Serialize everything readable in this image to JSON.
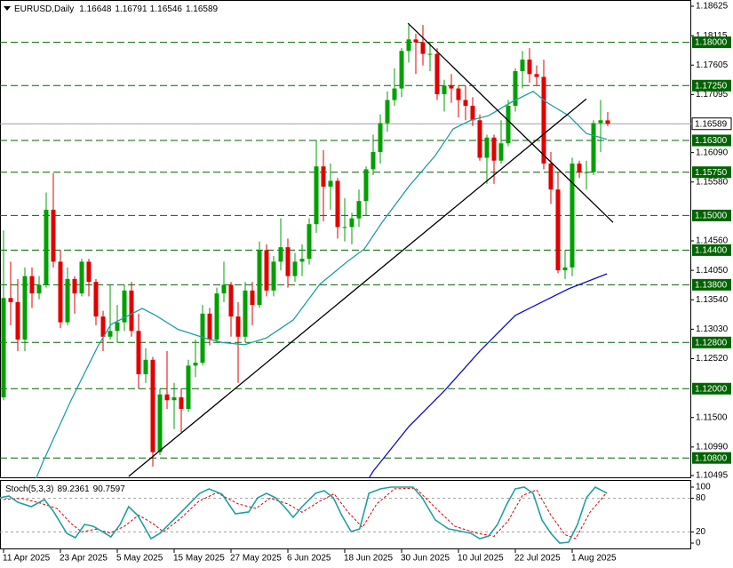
{
  "chart_data": {
    "type": "candlestick",
    "title": "EURUSD,Daily",
    "header_ohlc": [
      1.16648,
      1.16791,
      1.16546,
      1.16589
    ],
    "xlim": [
      -0.5,
      96.75
    ],
    "xticks": [
      {
        "value": 0,
        "label": "11 Apr 2025"
      },
      {
        "value": 8,
        "label": "23 Apr 2025"
      },
      {
        "value": 16,
        "label": "5 May 2025"
      },
      {
        "value": 24,
        "label": "15 May 2025"
      },
      {
        "value": 32,
        "label": "27 May 2025"
      },
      {
        "value": 40,
        "label": "6 Jun 2025"
      },
      {
        "value": 48,
        "label": "18 Jun 2025"
      },
      {
        "value": 56,
        "label": "30 Jun 2025"
      },
      {
        "value": 64,
        "label": "10 Jul 2025"
      },
      {
        "value": 72,
        "label": "22 Jul 2025"
      },
      {
        "value": 80,
        "label": "1 Aug 2025"
      }
    ],
    "ylim": [
      1.10495,
      1.18625
    ],
    "yticks": [
      1.18625,
      1.18115,
      1.17605,
      1.17095,
      {
        "value": 1.1609,
        "label": "1.16090"
      },
      {
        "value": 1.1558,
        "label": "1.15580"
      },
      {
        "value": 1.1456,
        "label": "1.14560"
      },
      {
        "value": 1.1405,
        "label": "1.14050"
      },
      {
        "value": 1.1354,
        "label": "1.13540"
      },
      {
        "value": 1.1303,
        "label": "1.13030"
      },
      {
        "value": 1.1252,
        "label": "1.12520"
      },
      {
        "value": 1.115,
        "label": "1.11500"
      },
      {
        "value": 1.1099,
        "label": "1.10990"
      },
      1.10495
    ],
    "up_color": "#00a000",
    "down_color": "#e00000",
    "open": [
      1.1185,
      1.1357,
      1.135,
      1.1285,
      1.1395,
      1.1365,
      1.138,
      1.151,
      1.142,
      1.1315,
      1.139,
      1.1365,
      1.142,
      1.1385,
      1.1325,
      1.129,
      1.13,
      1.1315,
      1.137,
      1.13,
      1.1225,
      1.125,
      1.109,
      1.119,
      1.118,
      1.1185,
      1.1165,
      1.124,
      1.1245,
      1.133,
      1.1285,
      1.1365,
      1.138,
      1.1325,
      1.129,
      1.137,
      1.1345,
      1.144,
      1.137,
      1.142,
      1.1445,
      1.1395,
      1.142,
      1.1425,
      1.1485,
      1.1585,
      1.155,
      1.156,
      1.148,
      1.148,
      1.1495,
      1.1525,
      1.158,
      1.161,
      1.166,
      1.17,
      1.172,
      1.1785,
      1.1805,
      1.18,
      1.178,
      1.178,
      1.171,
      1.1725,
      1.172,
      1.17,
      1.169,
      1.1665,
      1.16,
      1.1635,
      1.1595,
      1.1625,
      1.169,
      1.175,
      1.177,
      1.1745,
      1.174,
      1.159,
      1.1545,
      1.1405,
      1.141,
      1.159,
      1.1575,
      1.1575,
      1.166,
      1.16648
    ],
    "high": [
      1.1474,
      1.142,
      1.139,
      1.141,
      1.141,
      1.1395,
      1.154,
      1.1573,
      1.144,
      1.141,
      1.1395,
      1.1425,
      1.1425,
      1.139,
      1.1335,
      1.138,
      1.1345,
      1.138,
      1.1385,
      1.133,
      1.127,
      1.1255,
      1.12,
      1.1265,
      1.121,
      1.12,
      1.125,
      1.1285,
      1.1345,
      1.134,
      1.1375,
      1.142,
      1.1385,
      1.135,
      1.1385,
      1.1385,
      1.1455,
      1.145,
      1.143,
      1.1495,
      1.146,
      1.1435,
      1.145,
      1.1495,
      1.1631,
      1.1613,
      1.159,
      1.1565,
      1.153,
      1.1505,
      1.1545,
      1.1585,
      1.164,
      1.1675,
      1.1715,
      1.1755,
      1.179,
      1.183,
      1.1815,
      1.183,
      1.18,
      1.179,
      1.1735,
      1.1745,
      1.1725,
      1.1725,
      1.1705,
      1.1675,
      1.164,
      1.164,
      1.1665,
      1.17,
      1.1755,
      1.1785,
      1.179,
      1.176,
      1.177,
      1.161,
      1.1575,
      1.144,
      1.16,
      1.1595,
      1.1595,
      1.1665,
      1.17,
      1.16791
    ],
    "low": [
      1.118,
      1.131,
      1.1265,
      1.1265,
      1.134,
      1.1355,
      1.1375,
      1.141,
      1.1305,
      1.131,
      1.133,
      1.136,
      1.136,
      1.131,
      1.1265,
      1.1285,
      1.128,
      1.13,
      1.129,
      1.12,
      1.121,
      1.1065,
      1.1085,
      1.1165,
      1.113,
      1.1125,
      1.116,
      1.122,
      1.124,
      1.1275,
      1.128,
      1.135,
      1.129,
      1.121,
      1.128,
      1.131,
      1.134,
      1.136,
      1.136,
      1.1405,
      1.1375,
      1.1385,
      1.1395,
      1.1415,
      1.147,
      1.149,
      1.151,
      1.146,
      1.1455,
      1.145,
      1.148,
      1.15,
      1.157,
      1.159,
      1.1645,
      1.169,
      1.1705,
      1.1765,
      1.1745,
      1.176,
      1.175,
      1.17,
      1.168,
      1.1695,
      1.167,
      1.1665,
      1.1655,
      1.1595,
      1.1555,
      1.1555,
      1.159,
      1.162,
      1.168,
      1.172,
      1.173,
      1.1725,
      1.158,
      1.152,
      1.14,
      1.139,
      1.1395,
      1.1565,
      1.1545,
      1.157,
      1.161,
      1.16546
    ],
    "close": [
      1.1357,
      1.135,
      1.1285,
      1.1395,
      1.1365,
      1.138,
      1.151,
      1.142,
      1.1315,
      1.139,
      1.1365,
      1.142,
      1.1385,
      1.1325,
      1.129,
      1.13,
      1.1315,
      1.137,
      1.13,
      1.1225,
      1.125,
      1.109,
      1.119,
      1.118,
      1.1185,
      1.1165,
      1.124,
      1.1245,
      1.133,
      1.1285,
      1.1365,
      1.138,
      1.1325,
      1.129,
      1.137,
      1.1345,
      1.144,
      1.137,
      1.142,
      1.1445,
      1.1395,
      1.142,
      1.1425,
      1.1485,
      1.1585,
      1.155,
      1.156,
      1.148,
      1.148,
      1.1495,
      1.1525,
      1.158,
      1.161,
      1.166,
      1.17,
      1.172,
      1.1785,
      1.1805,
      1.18,
      1.178,
      1.178,
      1.171,
      1.1725,
      1.172,
      1.17,
      1.169,
      1.1665,
      1.16,
      1.1635,
      1.1595,
      1.1625,
      1.169,
      1.175,
      1.177,
      1.1745,
      1.174,
      1.159,
      1.1545,
      1.1405,
      1.141,
      1.159,
      1.1575,
      1.1575,
      1.166,
      1.1665,
      1.16589
    ],
    "current_price": 1.16589,
    "current_color": "#a0a0a0",
    "level_color": "#006400",
    "levels": [
      {
        "value": 1.18,
        "label": "1.18000"
      },
      {
        "value": 1.1725,
        "label": "1.17250"
      },
      {
        "value": 1.163,
        "label": "1.16300"
      },
      {
        "value": 1.1575,
        "label": "1.15750"
      },
      {
        "value": 1.15,
        "label": "1.15000"
      },
      {
        "value": 1.144,
        "label": "1.14400"
      },
      {
        "value": 1.138,
        "label": "1.13800"
      },
      {
        "value": 1.128,
        "label": "1.12800"
      },
      {
        "value": 1.12,
        "label": "1.12000"
      },
      {
        "value": 1.108,
        "label": "1.10800"
      }
    ],
    "overlays": [
      {
        "color": "#20a0a0",
        "x": [
          4.5,
          5.5,
          9.5,
          13.25,
          15.1,
          17.6,
          19.5,
          21.4,
          24.5,
          28.25,
          30.75,
          33.9,
          37,
          40.75,
          44.5,
          48.25,
          50.75,
          53.25,
          57,
          60.75,
          63.25,
          65.75,
          68.25,
          71.4,
          74.5,
          76.4,
          79.5,
          82,
          84.9
        ],
        "values": [
          1.1042,
          1.1072,
          1.118,
          1.1273,
          1.1311,
          1.1327,
          1.1339,
          1.1327,
          1.1303,
          1.1288,
          1.128,
          1.1276,
          1.1288,
          1.1319,
          1.1381,
          1.1419,
          1.1442,
          1.1488,
          1.155,
          1.1604,
          1.165,
          1.1665,
          1.1673,
          1.1696,
          1.1715,
          1.1696,
          1.1673,
          1.1642,
          1.1632
        ]
      },
      {
        "color": "#1010d0",
        "x": [
          51.4,
          52,
          57,
          62,
          67,
          72,
          75.75,
          79.5,
          84.9
        ],
        "values": [
          1.1045,
          1.1057,
          1.1134,
          1.1196,
          1.1265,
          1.1327,
          1.135,
          1.1373,
          1.1399
        ]
      }
    ],
    "trendline_color": "#000000",
    "trendlines": [
      {
        "x": [
          17.6,
          82
        ],
        "values": [
          1.1048,
          1.1702
        ]
      },
      {
        "x": [
          56.9,
          85.75
        ],
        "values": [
          1.1833,
          1.1488
        ]
      }
    ],
    "stochastic": {
      "title": "Stoch(5,3,3)",
      "printed_values": [
        89.2361,
        90.7597
      ],
      "ylim": [
        0,
        100
      ],
      "yticks": [
        100,
        80,
        20,
        0
      ],
      "levels": [
        80,
        20
      ],
      "k": {
        "color": "#20a0a0",
        "x": [
          -0.5,
          0.75,
          2,
          3.9,
          5.75,
          7,
          8.9,
          10.1,
          11.4,
          12.6,
          13.9,
          15.1,
          16.4,
          17.6,
          18.9,
          20.75,
          22,
          23.9,
          25.75,
          27.6,
          28.9,
          30.75,
          32.6,
          34.5,
          35.75,
          37,
          38.25,
          39.5,
          40.75,
          42,
          43.9,
          45.1,
          46.4,
          47.6,
          48.9,
          50.1,
          51.4,
          53,
          54.5,
          56.4,
          57.6,
          58.9,
          60.75,
          62.6,
          63.9,
          65.75,
          67,
          68.25,
          69.5,
          70.75,
          72,
          73.25,
          74.5,
          75.75,
          77,
          78.25,
          79.5,
          80.75,
          82,
          83.25,
          84.9
        ],
        "values": [
          81,
          84.1,
          73,
          65.1,
          77.8,
          57.1,
          17.5,
          9.5,
          33.3,
          30.2,
          20.6,
          11.1,
          33.3,
          65.1,
          49.2,
          7.9,
          17.5,
          41.3,
          65.1,
          88.9,
          96.8,
          87.3,
          52.4,
          55.6,
          81,
          88.9,
          81,
          65.1,
          46,
          65.1,
          88.9,
          93.7,
          81,
          49.2,
          20.6,
          25.4,
          88.9,
          96.8,
          100,
          100,
          100,
          81,
          41.3,
          25.4,
          22.2,
          17.5,
          7.9,
          12.7,
          33.3,
          68.3,
          96.8,
          100,
          88.9,
          41.3,
          17.5,
          0,
          1.6,
          33.3,
          81,
          100,
          89.2
        ]
      },
      "d": {
        "color": "#e00000",
        "x": [
          0,
          2.5,
          5,
          7.5,
          9.5,
          11,
          13,
          15,
          17,
          19,
          21,
          22.5,
          25,
          27.5,
          30,
          33,
          35.5,
          37.5,
          40,
          42,
          44.5,
          46.5,
          48.5,
          50.5,
          52.5,
          55,
          58,
          61,
          63.5,
          66.5,
          69,
          71,
          73,
          75,
          77,
          79,
          80.5,
          82.5,
          84.9
        ],
        "values": [
          78,
          80,
          72,
          62,
          35,
          20,
          25,
          18,
          30,
          50,
          35,
          20,
          45,
          75,
          90,
          70,
          62,
          80,
          70,
          55,
          75,
          88,
          55,
          28,
          70,
          97,
          98,
          60,
          30,
          18,
          12,
          40,
          85,
          95,
          50,
          15,
          8,
          55,
          90.8
        ]
      }
    }
  }
}
